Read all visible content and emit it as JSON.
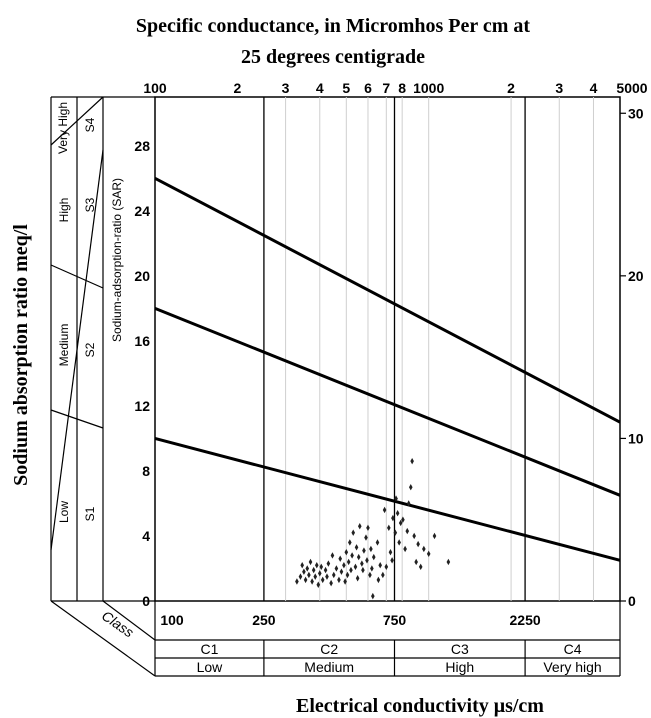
{
  "title_line1": "Specific conductance, in Micromhos Per cm at",
  "title_line2": "25 degrees centigrade",
  "chart_data": {
    "type": "scatter",
    "xscale": "log",
    "xlim": [
      100,
      5000
    ],
    "ylim": [
      0,
      31
    ],
    "xlabel": "Electrical conductivity μs/cm",
    "ylabel": "Sodium absorption ratio meq/l",
    "inner_ylabel": "Sodium-adsorption-ratio (SAR)",
    "top_ticks": [
      {
        "v": 100,
        "t": "100"
      },
      {
        "v": 200,
        "t": "2"
      },
      {
        "v": 300,
        "t": "3"
      },
      {
        "v": 400,
        "t": "4"
      },
      {
        "v": 500,
        "t": "5"
      },
      {
        "v": 600,
        "t": "6"
      },
      {
        "v": 700,
        "t": "7"
      },
      {
        "v": 800,
        "t": "8"
      },
      {
        "v": 1000,
        "t": "1000"
      },
      {
        "v": 2000,
        "t": "2"
      },
      {
        "v": 3000,
        "t": "3"
      },
      {
        "v": 4000,
        "t": "4"
      },
      {
        "v": 5000,
        "t": "5000"
      }
    ],
    "bottom_ticks": [
      {
        "v": 100,
        "t": "100"
      },
      {
        "v": 250,
        "t": "250"
      },
      {
        "v": 750,
        "t": "750"
      },
      {
        "v": 2250,
        "t": "2250"
      }
    ],
    "left_ticks": [
      0,
      4,
      8,
      12,
      16,
      20,
      24,
      28
    ],
    "right_ticks": [
      0,
      10,
      20,
      30
    ],
    "class_label": "Class",
    "classes": [
      {
        "name": "C1",
        "desc": "Low",
        "from": 100,
        "to": 250
      },
      {
        "name": "C2",
        "desc": "Medium",
        "from": 250,
        "to": 750
      },
      {
        "name": "C3",
        "desc": "High",
        "from": 750,
        "to": 2250
      },
      {
        "name": "C4",
        "desc": "Very high",
        "from": 2250,
        "to": 5000
      }
    ],
    "sodium_classes": [
      {
        "name": "S1",
        "desc": "Low"
      },
      {
        "name": "S2",
        "desc": "Medium"
      },
      {
        "name": "S3",
        "desc": "High"
      },
      {
        "name": "S4",
        "desc": "Very High"
      }
    ],
    "boundary_lines": [
      {
        "x": [
          100,
          5000
        ],
        "y": [
          10,
          2.5
        ]
      },
      {
        "x": [
          100,
          5000
        ],
        "y": [
          18,
          6.5
        ]
      },
      {
        "x": [
          100,
          5000
        ],
        "y": [
          26,
          11
        ]
      }
    ],
    "points": [
      [
        330,
        1.2
      ],
      [
        340,
        1.5
      ],
      [
        345,
        2.2
      ],
      [
        350,
        1.8
      ],
      [
        355,
        1.3
      ],
      [
        360,
        2.0
      ],
      [
        365,
        1.6
      ],
      [
        370,
        2.4
      ],
      [
        375,
        1.2
      ],
      [
        380,
        1.9
      ],
      [
        385,
        1.5
      ],
      [
        390,
        2.2
      ],
      [
        395,
        1.0
      ],
      [
        400,
        1.7
      ],
      [
        405,
        2.1
      ],
      [
        410,
        1.3
      ],
      [
        420,
        1.9
      ],
      [
        425,
        1.5
      ],
      [
        430,
        2.3
      ],
      [
        440,
        1.1
      ],
      [
        445,
        2.8
      ],
      [
        450,
        1.6
      ],
      [
        460,
        2.0
      ],
      [
        470,
        1.3
      ],
      [
        475,
        2.6
      ],
      [
        480,
        1.8
      ],
      [
        490,
        2.2
      ],
      [
        495,
        1.2
      ],
      [
        500,
        3.0
      ],
      [
        505,
        1.6
      ],
      [
        510,
        2.4
      ],
      [
        515,
        3.6
      ],
      [
        520,
        1.9
      ],
      [
        525,
        2.8
      ],
      [
        530,
        4.2
      ],
      [
        540,
        2.1
      ],
      [
        545,
        3.3
      ],
      [
        550,
        1.4
      ],
      [
        555,
        2.7
      ],
      [
        560,
        4.6
      ],
      [
        570,
        2.3
      ],
      [
        575,
        1.9
      ],
      [
        580,
        3.1
      ],
      [
        590,
        3.9
      ],
      [
        595,
        2.5
      ],
      [
        600,
        4.5
      ],
      [
        610,
        1.6
      ],
      [
        615,
        3.2
      ],
      [
        620,
        2.0
      ],
      [
        625,
        0.3
      ],
      [
        630,
        2.7
      ],
      [
        650,
        3.6
      ],
      [
        655,
        1.3
      ],
      [
        665,
        2.2
      ],
      [
        680,
        1.6
      ],
      [
        690,
        5.6
      ],
      [
        700,
        2.1
      ],
      [
        715,
        4.5
      ],
      [
        725,
        3.0
      ],
      [
        735,
        2.5
      ],
      [
        740,
        5.1
      ],
      [
        755,
        4.2
      ],
      [
        760,
        6.3
      ],
      [
        770,
        5.4
      ],
      [
        780,
        3.6
      ],
      [
        790,
        4.8
      ],
      [
        805,
        5.0
      ],
      [
        820,
        3.2
      ],
      [
        835,
        4.3
      ],
      [
        845,
        6.0
      ],
      [
        860,
        7.0
      ],
      [
        870,
        8.6
      ],
      [
        885,
        4.0
      ],
      [
        900,
        2.4
      ],
      [
        915,
        3.5
      ],
      [
        935,
        2.1
      ],
      [
        960,
        3.2
      ],
      [
        1000,
        2.9
      ],
      [
        1050,
        4.0
      ],
      [
        1180,
        2.4
      ]
    ]
  }
}
